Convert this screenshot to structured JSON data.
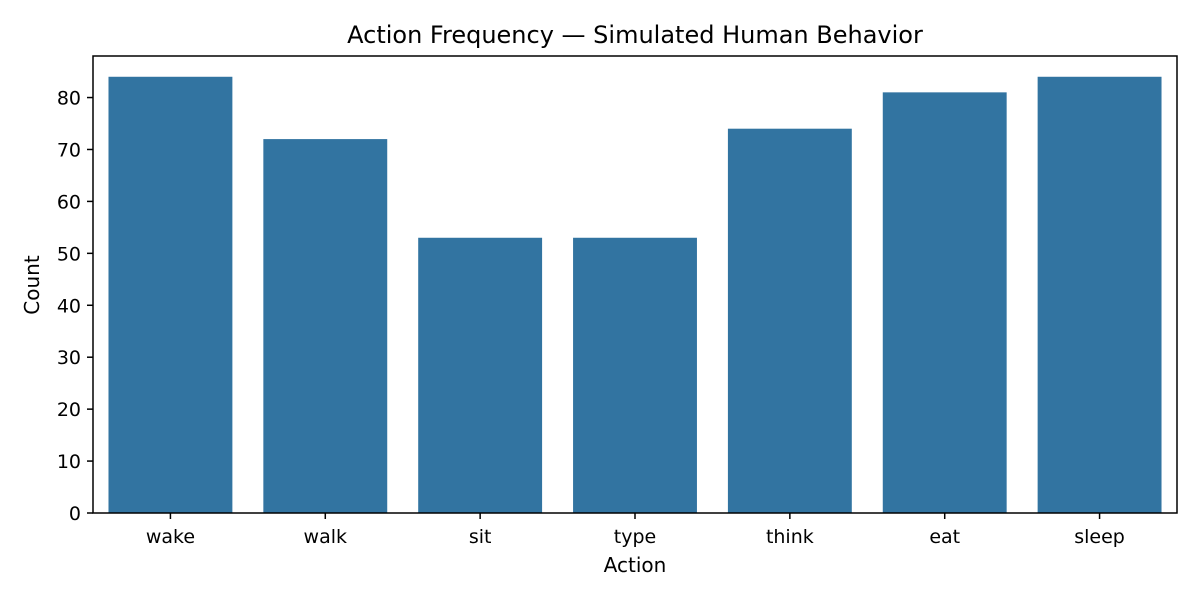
{
  "chart_data": {
    "type": "bar",
    "title": "Action Frequency — Simulated Human Behavior",
    "xlabel": "Action",
    "ylabel": "Count",
    "categories": [
      "wake",
      "walk",
      "sit",
      "type",
      "think",
      "eat",
      "sleep"
    ],
    "values": [
      84,
      72,
      53,
      53,
      74,
      81,
      84
    ],
    "ylim": [
      0,
      88
    ],
    "yticks": [
      0,
      10,
      20,
      30,
      40,
      50,
      60,
      70,
      80
    ],
    "grid": false,
    "legend": "none",
    "bar_color": "#3274a1"
  }
}
